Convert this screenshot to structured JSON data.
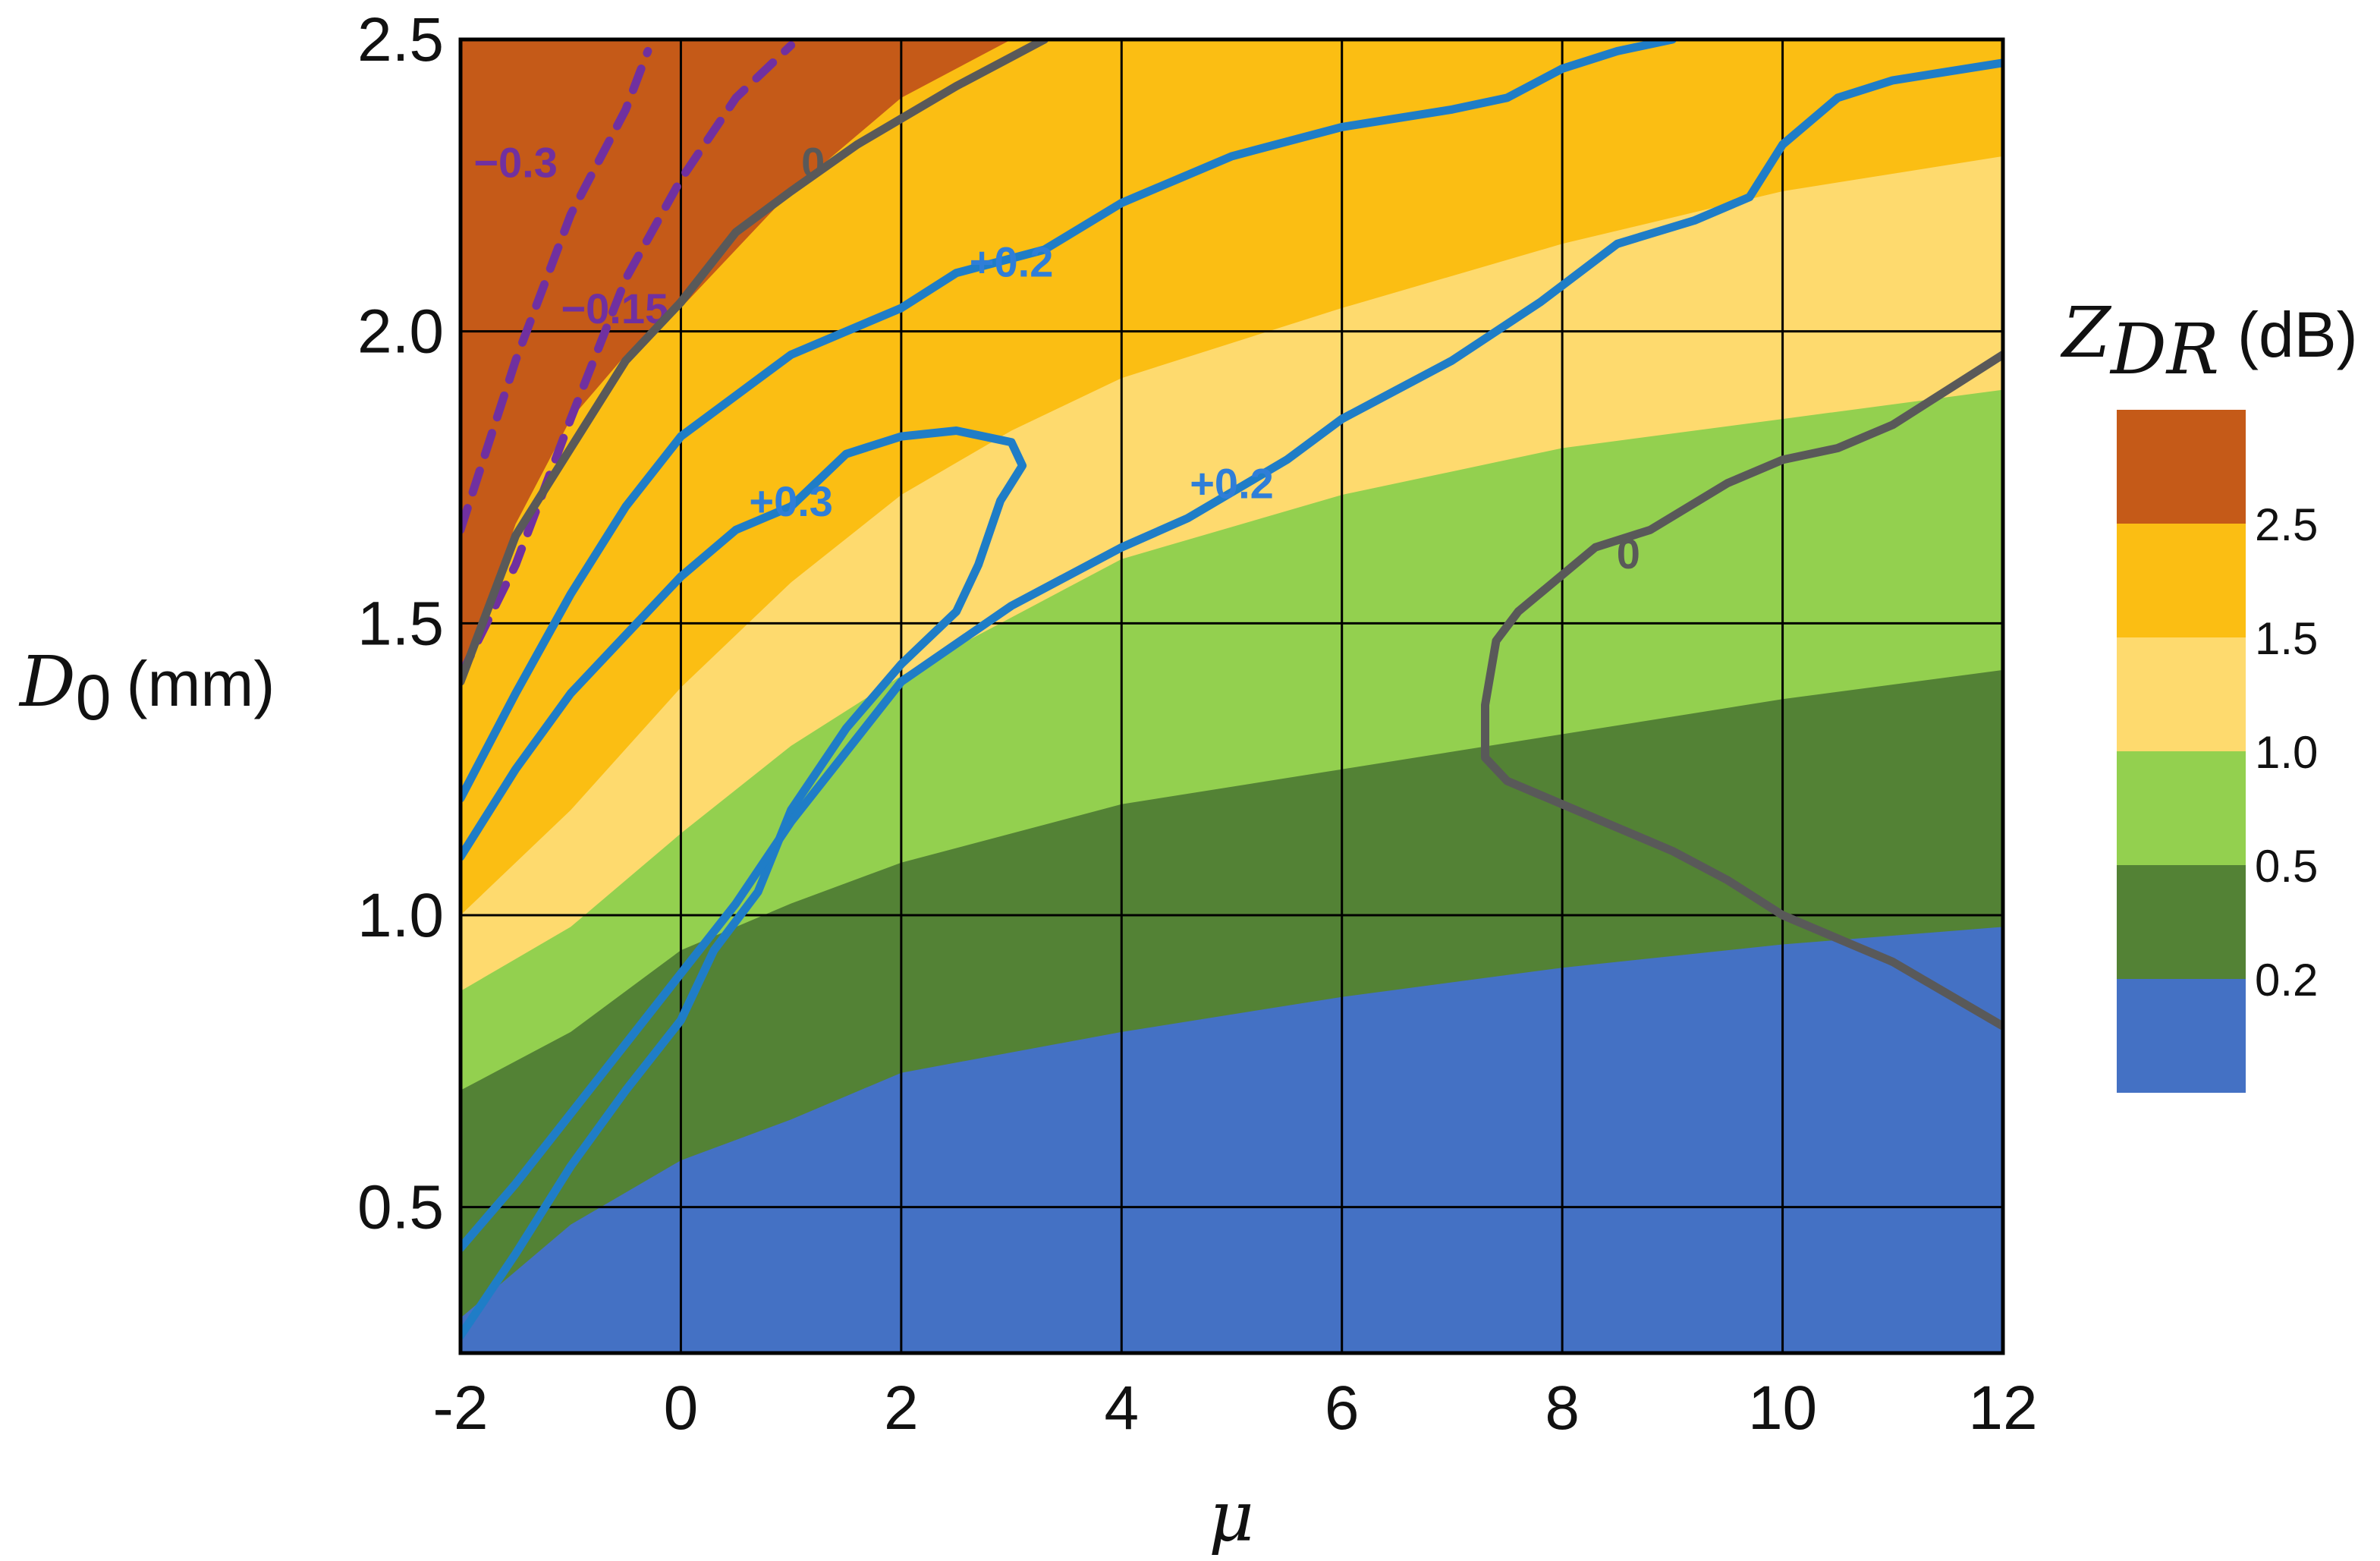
{
  "chart_data": {
    "type": "contour",
    "xlabel": "μ",
    "ylabel": "D",
    "ylabel_sub": "0",
    "ylabel_unit": "(mm)",
    "x_ticks": [
      "-2",
      "0",
      "2",
      "4",
      "6",
      "8",
      "10",
      "12"
    ],
    "y_ticks": [
      "0.5",
      "1.0",
      "1.5",
      "2.0",
      "2.5"
    ],
    "xlim": [
      -2,
      12
    ],
    "ylim": [
      0.25,
      2.5
    ],
    "grid": true,
    "colorbar": {
      "title": "Z",
      "title_sub": "DR",
      "title_unit": "(dB)",
      "placement": "right",
      "levels": [
        {
          "range": "> 2.5",
          "color": "#C55A18"
        },
        {
          "range": "1.5 – 2.5",
          "color": "#FBBE13"
        },
        {
          "range": "1.0 – 1.5",
          "color": "#FEDA6E"
        },
        {
          "range": "0.5 – 1.0",
          "color": "#93D04F"
        },
        {
          "range": "0.2 – 0.5",
          "color": "#538235"
        },
        {
          "range": "< 0.2",
          "color": "#4471C4"
        }
      ],
      "tick_labels": [
        "2.5",
        "1.5",
        "1.0",
        "0.5",
        "0.2"
      ]
    },
    "filled_boundaries": [
      {
        "level": "2.5",
        "points": [
          [
            -2,
            1.4
          ],
          [
            -1.5,
            1.67
          ],
          [
            -1,
            1.85
          ],
          [
            -0.5,
            1.96
          ],
          [
            0,
            2.04
          ],
          [
            1,
            2.24
          ],
          [
            2,
            2.4
          ],
          [
            3,
            2.5
          ]
        ]
      },
      {
        "level": "1.5",
        "points": [
          [
            -2,
            1.0
          ],
          [
            -1,
            1.18
          ],
          [
            0,
            1.39
          ],
          [
            1,
            1.57
          ],
          [
            2,
            1.72
          ],
          [
            3,
            1.83
          ],
          [
            4,
            1.92
          ],
          [
            6,
            2.04
          ],
          [
            8,
            2.15
          ],
          [
            10,
            2.24
          ],
          [
            12,
            2.3
          ]
        ]
      },
      {
        "level": "1.0",
        "points": [
          [
            -2,
            0.87
          ],
          [
            -1,
            0.98
          ],
          [
            0,
            1.14
          ],
          [
            1,
            1.29
          ],
          [
            2,
            1.41
          ],
          [
            4,
            1.61
          ],
          [
            6,
            1.72
          ],
          [
            8,
            1.8
          ],
          [
            10,
            1.85
          ],
          [
            12,
            1.9
          ]
        ]
      },
      {
        "level": "0.5",
        "points": [
          [
            -2,
            0.7
          ],
          [
            -1,
            0.8
          ],
          [
            0,
            0.94
          ],
          [
            1,
            1.02
          ],
          [
            2,
            1.09
          ],
          [
            4,
            1.19
          ],
          [
            6,
            1.25
          ],
          [
            8,
            1.31
          ],
          [
            10,
            1.37
          ],
          [
            12,
            1.42
          ]
        ]
      },
      {
        "level": "0.2",
        "points": [
          [
            -2,
            0.31
          ],
          [
            -1,
            0.47
          ],
          [
            0,
            0.58
          ],
          [
            1,
            0.65
          ],
          [
            2,
            0.73
          ],
          [
            4,
            0.8
          ],
          [
            6,
            0.86
          ],
          [
            8,
            0.91
          ],
          [
            10,
            0.95
          ],
          [
            12,
            0.98
          ]
        ]
      }
    ],
    "contours": [
      {
        "label": "−0.3",
        "color": "#7030A0",
        "style": "dashed",
        "label_at": [
          -1.5,
          2.29
        ],
        "points": [
          [
            -2,
            1.66
          ],
          [
            -1.5,
            1.95
          ],
          [
            -1,
            2.2
          ],
          [
            -0.5,
            2.38
          ],
          [
            -0.3,
            2.48
          ]
        ]
      },
      {
        "label": "−0.15",
        "color": "#7030A0",
        "style": "dashed",
        "label_at": [
          -0.6,
          2.04
        ],
        "points": [
          [
            -2,
            1.41
          ],
          [
            -1.5,
            1.6
          ],
          [
            -1,
            1.85
          ],
          [
            -0.5,
            2.09
          ],
          [
            0,
            2.26
          ],
          [
            0.5,
            2.4
          ],
          [
            1,
            2.49
          ]
        ]
      },
      {
        "label": "0",
        "color": "#595959",
        "style": "solid",
        "label_at": [
          1.2,
          2.29
        ],
        "points": [
          [
            -2,
            1.4
          ],
          [
            -1.5,
            1.65
          ],
          [
            -1,
            1.8
          ],
          [
            -0.5,
            1.95
          ],
          [
            0,
            2.05
          ],
          [
            0.5,
            2.17
          ],
          [
            1,
            2.24
          ],
          [
            1.6,
            2.32
          ],
          [
            2.5,
            2.42
          ],
          [
            3,
            2.47
          ],
          [
            3.3,
            2.5
          ]
        ]
      },
      {
        "label": "0",
        "color": "#595959",
        "style": "solid",
        "label_at": [
          8.6,
          1.62
        ],
        "points": [
          [
            12,
            0.81
          ],
          [
            11,
            0.92
          ],
          [
            10,
            1.0
          ],
          [
            9.5,
            1.06
          ],
          [
            9,
            1.11
          ],
          [
            8,
            1.19
          ],
          [
            7.5,
            1.23
          ],
          [
            7.3,
            1.27
          ],
          [
            7.3,
            1.36
          ],
          [
            7.4,
            1.47
          ],
          [
            7.6,
            1.52
          ],
          [
            8.3,
            1.63
          ],
          [
            8.8,
            1.66
          ],
          [
            9.5,
            1.74
          ],
          [
            10,
            1.78
          ],
          [
            10.5,
            1.8
          ],
          [
            11,
            1.84
          ],
          [
            12,
            1.96
          ]
        ]
      },
      {
        "label": "+0.3",
        "color": "#1F7DC7",
        "style": "solid",
        "label_at": [
          1.0,
          1.71
        ],
        "points": [
          [
            -2,
            1.1
          ],
          [
            -1.5,
            1.25
          ],
          [
            -1,
            1.38
          ],
          [
            -0.5,
            1.48
          ],
          [
            0,
            1.58
          ],
          [
            0.5,
            1.66
          ],
          [
            1.0,
            1.7
          ],
          [
            1.5,
            1.79
          ],
          [
            2.0,
            1.82
          ],
          [
            2.5,
            1.83
          ],
          [
            3.0,
            1.81
          ],
          [
            3.1,
            1.77
          ],
          [
            2.9,
            1.71
          ],
          [
            2.7,
            1.6
          ],
          [
            2.5,
            1.52
          ],
          [
            2.0,
            1.43
          ],
          [
            1.5,
            1.32
          ],
          [
            1.0,
            1.18
          ],
          [
            0.7,
            1.04
          ],
          [
            0.3,
            0.94
          ],
          [
            0,
            0.82
          ],
          [
            -0.5,
            0.7
          ],
          [
            -1,
            0.57
          ],
          [
            -1.5,
            0.42
          ],
          [
            -2,
            0.28
          ]
        ]
      },
      {
        "label": "+0.2",
        "color": "#1F7DC7",
        "style": "solid",
        "label_at": [
          3.0,
          2.12
        ],
        "points": [
          [
            -2,
            1.2
          ],
          [
            -1.5,
            1.38
          ],
          [
            -1,
            1.55
          ],
          [
            -0.5,
            1.7
          ],
          [
            0,
            1.82
          ],
          [
            1,
            1.96
          ],
          [
            2,
            2.04
          ],
          [
            2.5,
            2.1
          ],
          [
            3.3,
            2.14
          ],
          [
            4,
            2.22
          ],
          [
            5,
            2.3
          ],
          [
            6,
            2.35
          ],
          [
            7,
            2.38
          ],
          [
            7.5,
            2.4
          ],
          [
            8,
            2.45
          ],
          [
            8.5,
            2.48
          ],
          [
            9,
            2.5
          ]
        ]
      },
      {
        "label": "+0.2",
        "color": "#1F7DC7",
        "style": "solid",
        "label_at": [
          5.0,
          1.74
        ],
        "points": [
          [
            -2,
            0.43
          ],
          [
            -1.5,
            0.54
          ],
          [
            -1,
            0.66
          ],
          [
            -0.5,
            0.78
          ],
          [
            0,
            0.9
          ],
          [
            0.5,
            1.02
          ],
          [
            1,
            1.16
          ],
          [
            1.5,
            1.28
          ],
          [
            2,
            1.4
          ],
          [
            3,
            1.53
          ],
          [
            4,
            1.63
          ],
          [
            4.6,
            1.68
          ],
          [
            5.5,
            1.78
          ],
          [
            6,
            1.85
          ],
          [
            7,
            1.95
          ],
          [
            7.8,
            2.05
          ],
          [
            8.5,
            2.15
          ],
          [
            9.2,
            2.19
          ],
          [
            9.7,
            2.23
          ],
          [
            10,
            2.32
          ],
          [
            10.5,
            2.4
          ],
          [
            11,
            2.43
          ],
          [
            12,
            2.46
          ]
        ]
      }
    ]
  }
}
